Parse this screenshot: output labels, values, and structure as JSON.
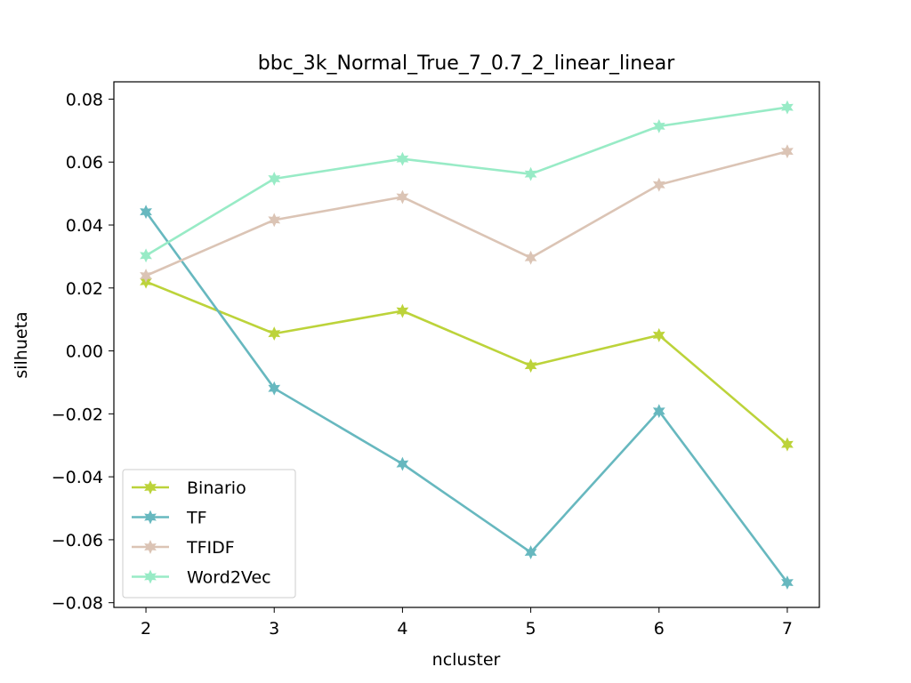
{
  "chart_data": {
    "type": "line",
    "title": "bbc_3k_Normal_True_7_0.7_2_linear_linear",
    "xlabel": "ncluster",
    "ylabel": "silhueta",
    "x": [
      2,
      3,
      4,
      5,
      6,
      7
    ],
    "xlim": [
      1.75,
      7.25
    ],
    "ylim": [
      -0.0815,
      0.0855
    ],
    "xticks": [
      2,
      3,
      4,
      5,
      6,
      7
    ],
    "yticks": [
      -0.08,
      -0.06,
      -0.04,
      -0.02,
      0.0,
      0.02,
      0.04,
      0.06,
      0.08
    ],
    "ytick_labels": [
      "−0.08",
      "−0.06",
      "−0.04",
      "−0.02",
      "0.00",
      "0.02",
      "0.04",
      "0.06",
      "0.08"
    ],
    "grid": false,
    "legend_position": "lower-left",
    "series": [
      {
        "name": "Binario",
        "color": "#bcd33a",
        "marker": "star",
        "values": [
          0.022,
          0.0055,
          0.0127,
          -0.0047,
          0.005,
          -0.0297
        ]
      },
      {
        "name": "TF",
        "color": "#67b8bf",
        "marker": "star",
        "values": [
          0.0442,
          -0.0119,
          -0.0359,
          -0.064,
          -0.0191,
          -0.0736
        ]
      },
      {
        "name": "TFIDF",
        "color": "#dbc4b5",
        "marker": "star",
        "values": [
          0.0239,
          0.0416,
          0.0489,
          0.0296,
          0.0528,
          0.0634
        ]
      },
      {
        "name": "Word2Vec",
        "color": "#98ebc6",
        "marker": "star",
        "values": [
          0.0303,
          0.0547,
          0.061,
          0.0562,
          0.0714,
          0.0774
        ]
      }
    ]
  }
}
